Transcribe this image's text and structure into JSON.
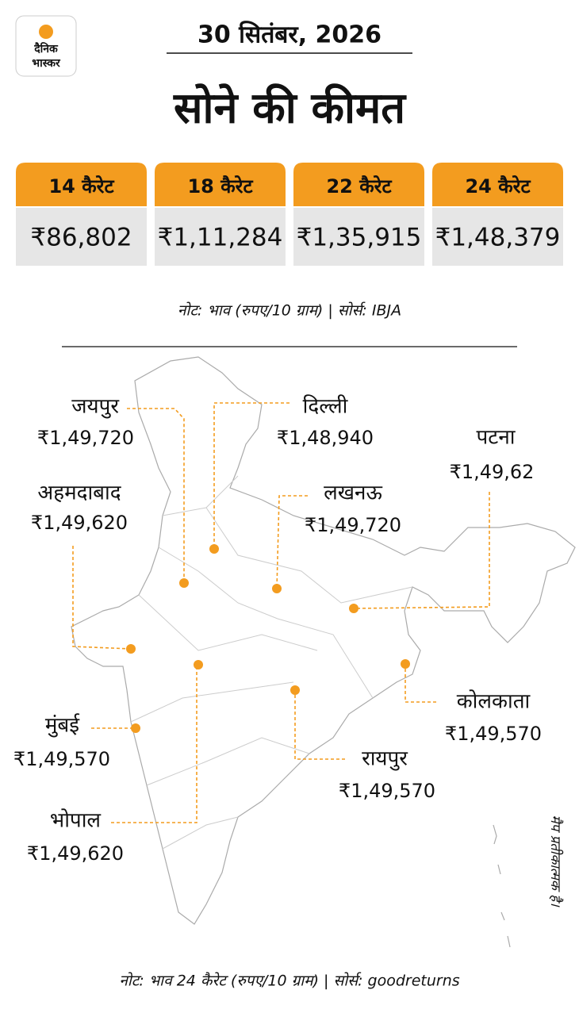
{
  "logo": {
    "line1": "दैनिक",
    "line2": "भास्कर"
  },
  "header": {
    "date": "30 सितंबर, 2026",
    "title": "सोने की कीमत"
  },
  "cards": [
    {
      "karat": "14 कैरेट",
      "price": "₹86,802"
    },
    {
      "karat": "18 कैरेट",
      "price": "₹1,11,284"
    },
    {
      "karat": "22 कैरेट",
      "price": "₹1,35,915"
    },
    {
      "karat": "24 कैरेट",
      "price": "₹1,48,379"
    }
  ],
  "note_top": "नोट: भाव (रुपए/10 ग्राम)  |  सोर्स: IBJA",
  "cities": [
    {
      "name": "जयपुर",
      "price": "₹1,49,720"
    },
    {
      "name": "दिल्ली",
      "price": "₹1,48,940"
    },
    {
      "name": "पटना",
      "price": "₹1,49,62"
    },
    {
      "name": "अहमदाबाद",
      "price": "₹1,49,620"
    },
    {
      "name": "लखनऊ",
      "price": "₹1,49,720"
    },
    {
      "name": "कोलकाता",
      "price": "₹1,49,570"
    },
    {
      "name": "मुंबई",
      "price": "₹1,49,570"
    },
    {
      "name": "रायपुर",
      "price": "₹1,49,570"
    },
    {
      "name": "भोपाल",
      "price": "₹1,49,620"
    }
  ],
  "map_note": "मैप प्रतीकात्मक है।",
  "note_bottom": "नोट: भाव 24 कैरेट (रुपए/10 ग्राम)  |  सोर्स: goodreturns"
}
